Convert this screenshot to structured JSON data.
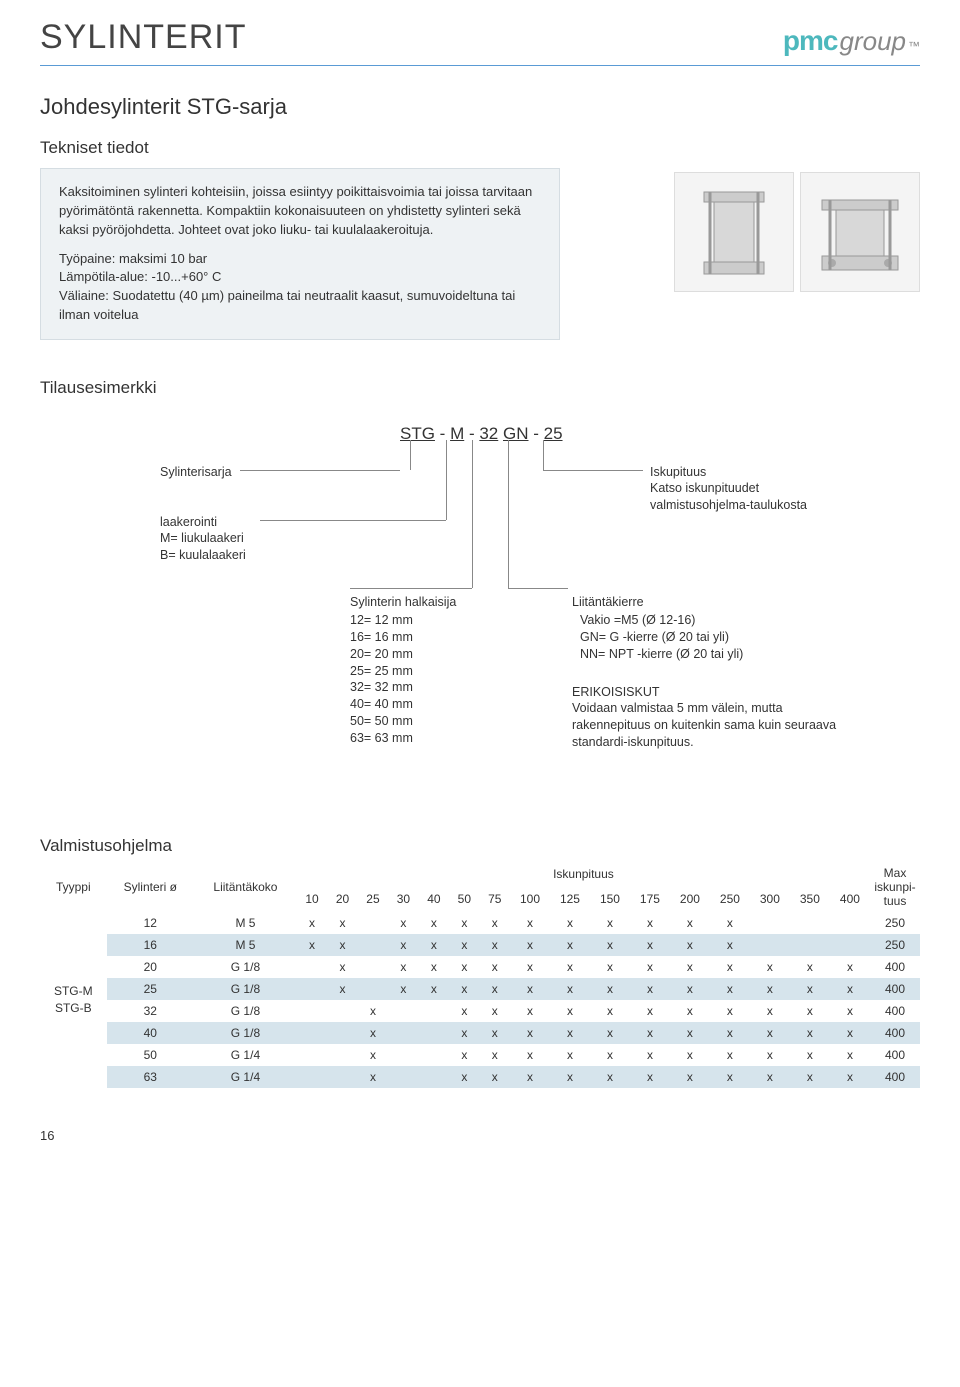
{
  "colors": {
    "accent": "#5a9bd5",
    "box_bg": "#eef2f4",
    "box_border": "#d5dde2",
    "row_alt": "#d6e4ec",
    "logo_teal": "#4db8bd",
    "logo_grey": "#888888",
    "text": "#333333"
  },
  "tab_number": "1",
  "logo": {
    "part1": "pmc",
    "part2": "group",
    "tm": "™"
  },
  "page_title": "SYLINTERIT",
  "subtitle": "Johdesylinterit STG-sarja",
  "sect_tekniset": "Tekniset tiedot",
  "specs": {
    "p1": "Kaksitoiminen sylinteri kohteisiin, joissa esiintyy poikittaisvoimia tai joissa tarvitaan pyörimätöntä rakennetta. Kompaktiin kokonaisuuteen on yhdistetty sylinteri sekä kaksi pyöröjohdetta. Johteet ovat joko liuku- tai kuulalaakeroituja.",
    "p2": "Työpaine: maksimi 10 bar\nLämpötila-alue: -10...+60° C\nVäliaine: Suodatettu (40 µm) paineilma tai neutraalit kaasut, sumuvoideltuna tai ilman voitelua"
  },
  "sect_order": "Tilausesimerkki",
  "order": {
    "code_parts": [
      "STG",
      " - ",
      "M",
      " - ",
      "32",
      " ",
      "GN",
      " - ",
      "25"
    ],
    "sylinterisarja": "Sylinterisarja",
    "laakerointi_title": "laakerointi",
    "laakerointi_lines": "M= liukulaakeri\nB= kuulalaakeri",
    "halkaisija_title": "Sylinterin halkaisija",
    "halkaisija_lines": "12= 12 mm\n16= 16 mm\n20= 20 mm\n25= 25 mm\n32= 32 mm\n40= 40 mm\n50= 50 mm\n63= 63 mm",
    "iskupituus_title": "Iskupituus",
    "iskupituus_lines": "Katso iskunpituudet valmistusohjelma-taulukosta",
    "liitanta_title": "Liitäntäkierre",
    "liitanta_lines": "Vakio =M5 (Ø 12-16)\nGN= G -kierre (Ø 20 tai yli)\nNN= NPT -kierre (Ø 20 tai yli)",
    "erikois_title": "ERIKOISISKUT",
    "erikois_lines": "Voidaan valmistaa 5 mm välein, mutta rakennepituus on kuitenkin sama kuin seuraava standardi-iskunpituus."
  },
  "sect_valmistus": "Valmistusohjelma",
  "table": {
    "hdr_tyyppi": "Tyyppi",
    "hdr_syl": "Sylinteri ø",
    "hdr_liit": "Liitäntäkoko",
    "hdr_isku": "Iskunpituus",
    "hdr_max": "Max iskunpi-tuus",
    "stroke_cols": [
      "10",
      "20",
      "25",
      "30",
      "40",
      "50",
      "75",
      "100",
      "125",
      "150",
      "175",
      "200",
      "250",
      "300",
      "350",
      "400"
    ],
    "type_label": "STG-M\nSTG-B",
    "rows": [
      {
        "dia": "12",
        "conn": "M 5",
        "strokes": [
          "x",
          "x",
          "",
          "x",
          "x",
          "x",
          "x",
          "x",
          "x",
          "x",
          "x",
          "x",
          "x",
          "",
          "",
          ""
        ],
        "max": "250"
      },
      {
        "dia": "16",
        "conn": "M 5",
        "strokes": [
          "x",
          "x",
          "",
          "x",
          "x",
          "x",
          "x",
          "x",
          "x",
          "x",
          "x",
          "x",
          "x",
          "",
          "",
          ""
        ],
        "max": "250"
      },
      {
        "dia": "20",
        "conn": "G 1/8",
        "strokes": [
          "",
          "x",
          "",
          "x",
          "x",
          "x",
          "x",
          "x",
          "x",
          "x",
          "x",
          "x",
          "x",
          "x",
          "x",
          "x"
        ],
        "max": "400"
      },
      {
        "dia": "25",
        "conn": "G 1/8",
        "strokes": [
          "",
          "x",
          "",
          "x",
          "x",
          "x",
          "x",
          "x",
          "x",
          "x",
          "x",
          "x",
          "x",
          "x",
          "x",
          "x"
        ],
        "max": "400"
      },
      {
        "dia": "32",
        "conn": "G 1/8",
        "strokes": [
          "",
          "",
          "x",
          "",
          "",
          "x",
          "x",
          "x",
          "x",
          "x",
          "x",
          "x",
          "x",
          "x",
          "x",
          "x"
        ],
        "max": "400"
      },
      {
        "dia": "40",
        "conn": "G 1/8",
        "strokes": [
          "",
          "",
          "x",
          "",
          "",
          "x",
          "x",
          "x",
          "x",
          "x",
          "x",
          "x",
          "x",
          "x",
          "x",
          "x"
        ],
        "max": "400"
      },
      {
        "dia": "50",
        "conn": "G 1/4",
        "strokes": [
          "",
          "",
          "x",
          "",
          "",
          "x",
          "x",
          "x",
          "x",
          "x",
          "x",
          "x",
          "x",
          "x",
          "x",
          "x"
        ],
        "max": "400"
      },
      {
        "dia": "63",
        "conn": "G 1/4",
        "strokes": [
          "",
          "",
          "x",
          "",
          "",
          "x",
          "x",
          "x",
          "x",
          "x",
          "x",
          "x",
          "x",
          "x",
          "x",
          "x"
        ],
        "max": "400"
      }
    ]
  },
  "page_number": "16"
}
